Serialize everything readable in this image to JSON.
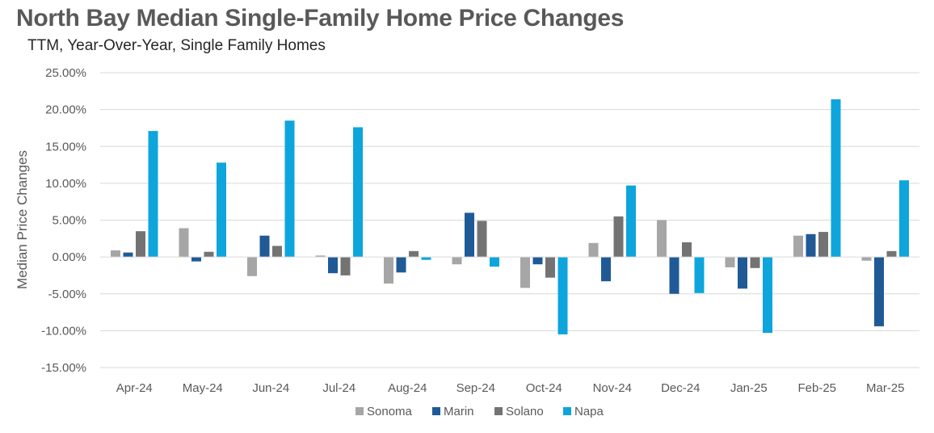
{
  "chart_data": {
    "type": "bar",
    "title": "North Bay Median Single-Family Home Price Changes",
    "subtitle": "TTM, Year-Over-Year,  Single Family Homes",
    "ylabel": "Median Price Changes",
    "xlabel": "",
    "ylim": [
      -15,
      25
    ],
    "yticks": [
      "25.00%",
      "20.00%",
      "15.00%",
      "10.00%",
      "5.00%",
      "0.00%",
      "-5.00%",
      "-10.00%",
      "-15.00%"
    ],
    "ytick_values": [
      25,
      20,
      15,
      10,
      5,
      0,
      -5,
      -10,
      -15
    ],
    "grid": true,
    "legend_position": "bottom",
    "categories": [
      "Apr-24",
      "May-24",
      "Jun-24",
      "Jul-24",
      "Aug-24",
      "Sep-24",
      "Oct-24",
      "Nov-24",
      "Dec-24",
      "Jan-25",
      "Feb-25",
      "Mar-25"
    ],
    "series": [
      {
        "name": "Sonoma",
        "color": "#a6a6a6",
        "values": [
          0.9,
          3.9,
          -2.6,
          0.2,
          -3.6,
          -1.0,
          -4.2,
          1.9,
          5.0,
          -1.4,
          2.9,
          -0.5
        ]
      },
      {
        "name": "Marin",
        "color": "#1f5a96",
        "values": [
          0.6,
          -0.6,
          2.9,
          -2.2,
          -2.1,
          6.0,
          -1.0,
          -3.3,
          -5.0,
          -4.3,
          3.1,
          -9.4
        ]
      },
      {
        "name": "Solano",
        "color": "#737373",
        "values": [
          3.5,
          0.7,
          1.5,
          -2.5,
          0.8,
          4.9,
          -2.8,
          5.5,
          2.0,
          -1.5,
          3.4,
          0.8
        ]
      },
      {
        "name": "Napa",
        "color": "#0ea5dc",
        "values": [
          17.1,
          12.8,
          18.5,
          17.6,
          -0.4,
          -1.3,
          -10.5,
          9.7,
          -4.9,
          -10.3,
          21.4,
          10.4
        ]
      }
    ]
  }
}
